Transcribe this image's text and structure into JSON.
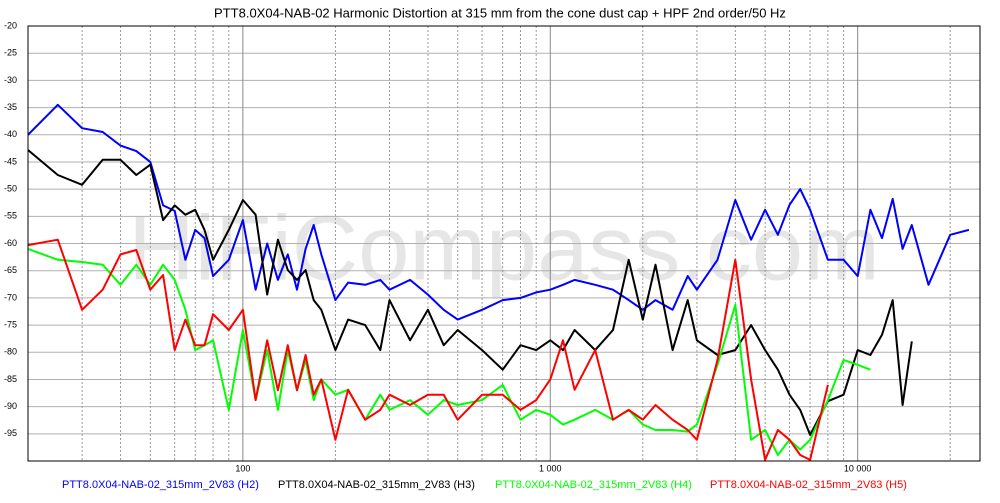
{
  "chart_data": {
    "type": "line",
    "title": "PTT8.0X04-NAB-02 Harmonic Distortion at 315 mm from the cone dust cap + HPF 2nd order/50 Hz",
    "watermark": "HiFiCompass.com",
    "x": [
      20,
      25,
      30,
      35,
      40,
      45,
      50,
      55,
      60,
      65,
      70,
      75,
      80,
      90,
      100,
      110,
      120,
      130,
      140,
      150,
      160,
      170,
      180,
      200,
      220,
      250,
      280,
      300,
      350,
      400,
      450,
      500,
      600,
      700,
      800,
      900,
      1000,
      1100,
      1200,
      1400,
      1600,
      1800,
      2000,
      2200,
      2500,
      2800,
      3000,
      3500,
      4000,
      4500,
      5000,
      5500,
      6000,
      6500,
      7000,
      8000,
      9000,
      10000,
      11000,
      12000,
      13000,
      14000,
      15000,
      17000,
      20000,
      23000
    ],
    "xscale": "log",
    "xlim": [
      20,
      25000
    ],
    "xticks": [
      {
        "value": 100,
        "label": "100"
      },
      {
        "value": 1000,
        "label": "1 000"
      },
      {
        "value": 10000,
        "label": "10 000"
      }
    ],
    "xminor_ticks": [
      20,
      30,
      40,
      50,
      60,
      70,
      80,
      90,
      200,
      300,
      400,
      500,
      600,
      700,
      800,
      900,
      2000,
      3000,
      4000,
      5000,
      6000,
      7000,
      8000,
      9000,
      20000
    ],
    "ylim": [
      -100,
      -20
    ],
    "yticks": [
      -20,
      -25,
      -30,
      -35,
      -40,
      -45,
      -50,
      -55,
      -60,
      -65,
      -70,
      -75,
      -80,
      -85,
      -90,
      -95
    ],
    "grid": true,
    "series": [
      {
        "name": "PTT8.0X04-NAB-02_315mm_2V83 (H2)",
        "color": "#0000ff",
        "values": [
          -40,
          -34.5,
          -38.8,
          -39.5,
          -42,
          -43,
          -45,
          -53,
          -54,
          -63,
          -57.5,
          -59,
          -66,
          -63,
          -55.7,
          -68.5,
          -60,
          -66.7,
          -62,
          -68.5,
          -61,
          -56.6,
          -62,
          -70.4,
          -67.2,
          -67.6,
          -66.7,
          -68.5,
          -66.7,
          -69.4,
          -72.2,
          -74,
          -72.2,
          -70.4,
          -70,
          -69,
          -68.5,
          -67.6,
          -66.7,
          -67.6,
          -68.5,
          -70.4,
          -72.2,
          -70.4,
          -72.2,
          -66,
          -68.5,
          -63,
          -52,
          -59.3,
          -53.8,
          -58.4,
          -52.9,
          -50,
          -53.8,
          -63,
          -63,
          -66,
          -53.8,
          -59,
          -51.8,
          -61,
          -56.6,
          -67.6,
          -58.4,
          -57.5
        ]
      },
      {
        "name": "PTT8.0X04-NAB-02_315mm_2V83 (H3)",
        "color": "#000000",
        "values": [
          -42.8,
          -47.4,
          -49.2,
          -44.6,
          -44.6,
          -47.4,
          -45.5,
          -55.7,
          -53,
          -54.7,
          -53.8,
          -57.5,
          -63,
          -57.5,
          -52,
          -54.7,
          -69.4,
          -59.3,
          -64.9,
          -66.7,
          -64.9,
          -70.4,
          -72.2,
          -79.6,
          -74,
          -75,
          -79.6,
          -70.4,
          -77.8,
          -72.2,
          -78.7,
          -75.9,
          -79.6,
          -83.2,
          -78.7,
          -79.6,
          -77.8,
          -79.6,
          -75.9,
          -79.6,
          -75.9,
          -63,
          -74,
          -63.9,
          -79.6,
          -70.4,
          -77.8,
          -80.5,
          -79.6,
          -75,
          -79.6,
          -83.2,
          -87.8,
          -90.6,
          -95.2,
          -89,
          -87.8,
          -79.6,
          -80.5,
          -76.8,
          -70.4,
          -89.7,
          -78,
          null,
          null,
          null
        ]
      },
      {
        "name": "PTT8.0X04-NAB-02_315mm_2V83 (H4)",
        "color": "#00ff00",
        "values": [
          -61,
          -63,
          -63.4,
          -63.9,
          -67.6,
          -63.9,
          -67.6,
          -63.9,
          -66.7,
          -72.2,
          -79.6,
          -78.7,
          -77.8,
          -90.6,
          -75.9,
          -88.8,
          -79.6,
          -90.6,
          -79.6,
          -87,
          -81.4,
          -88.8,
          -85,
          -87.8,
          -86.9,
          -92.4,
          -87.8,
          -90.6,
          -88.8,
          -91.5,
          -88.8,
          -89.7,
          -88.8,
          -86,
          -92.4,
          -90.6,
          -91.5,
          -93.3,
          -92.4,
          -90.6,
          -92.4,
          -90.6,
          -93.3,
          -94.3,
          -94.3,
          -94.6,
          -93.3,
          -82.3,
          -71.3,
          -96.1,
          -94.3,
          -98.9,
          -96.1,
          -97.9,
          -96.1,
          -88.8,
          -81.4,
          -82.3,
          -83.2,
          null,
          null,
          null,
          null,
          null,
          null,
          null
        ]
      },
      {
        "name": "PTT8.0X04-NAB-02_315mm_2V83 (H5)",
        "color": "#ff0000",
        "values": [
          -60.3,
          -59.3,
          -72.2,
          -68.5,
          -62,
          -61.2,
          -68.5,
          -65.8,
          -79.6,
          -74,
          -78.7,
          -78.7,
          -73,
          -75.9,
          -72.2,
          -88.8,
          -77.8,
          -87,
          -78.7,
          -87,
          -80.5,
          -87.8,
          -85,
          -96.1,
          -86.9,
          -92.4,
          -90.6,
          -87.8,
          -89.7,
          -87.8,
          -87.8,
          -92.4,
          -87.8,
          -87.8,
          -90.6,
          -88.8,
          -85,
          -77.8,
          -86.9,
          -79.6,
          -92.4,
          -90.6,
          -92.4,
          -89.7,
          -92.4,
          -94.3,
          -96.1,
          -81.4,
          -63,
          -85,
          -99.8,
          -94.3,
          -96.1,
          -98.9,
          -99.8,
          -86,
          null,
          null,
          null,
          null,
          null,
          null,
          null,
          null,
          null,
          null
        ]
      }
    ]
  }
}
